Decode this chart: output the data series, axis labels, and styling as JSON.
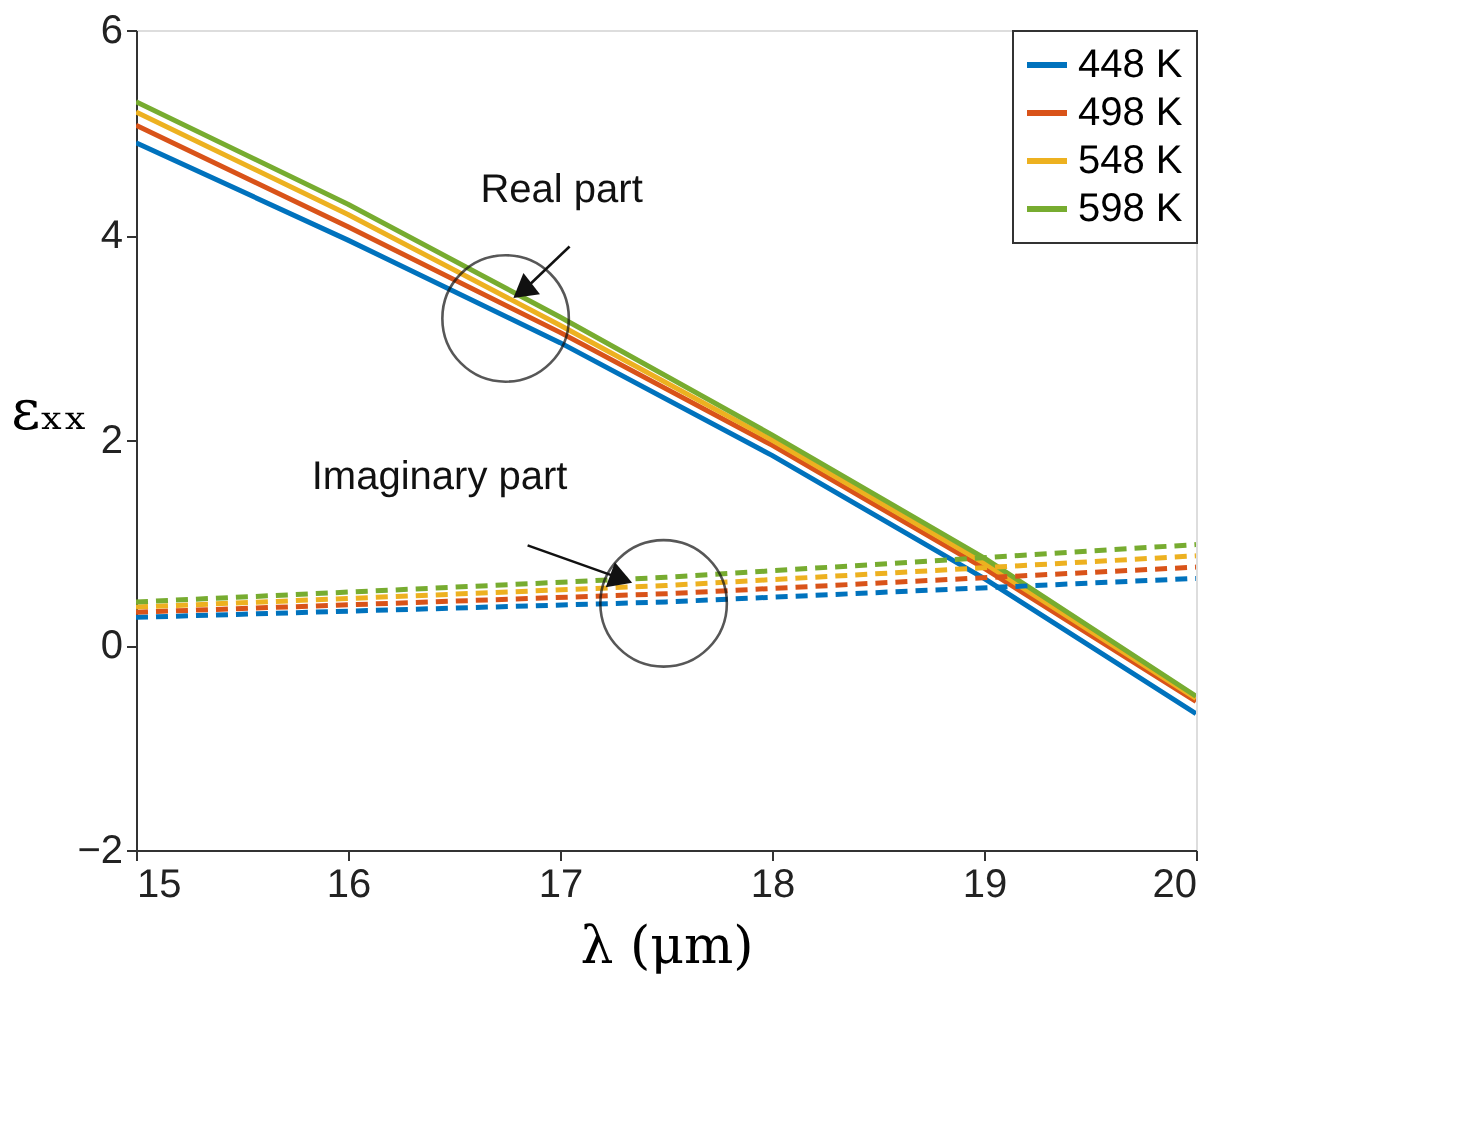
{
  "chart_data": {
    "type": "line",
    "xlabel": "λ (μm)",
    "ylabel": "εₓₓ",
    "x": [
      15,
      16,
      17,
      18,
      19,
      20
    ],
    "xlim": [
      15,
      20
    ],
    "xticks": [
      15,
      16,
      17,
      18,
      19,
      20
    ],
    "ylim": [
      -2,
      6
    ],
    "yticks": [
      -2,
      0,
      2,
      4,
      6
    ],
    "grid": false,
    "legend": "top right",
    "marker": "none",
    "series": [
      {
        "name": "448 K",
        "color": "#0072bd",
        "line_style": "solid",
        "values": [
          4.9,
          3.95,
          2.95,
          1.85,
          0.65,
          -0.67
        ]
      },
      {
        "name": "498 K",
        "color": "#d95319",
        "line_style": "solid",
        "values": [
          5.07,
          4.08,
          3.05,
          1.95,
          0.75,
          -0.55
        ]
      },
      {
        "name": "548 K",
        "color": "#edb120",
        "line_style": "solid",
        "values": [
          5.2,
          4.2,
          3.12,
          2.0,
          0.8,
          -0.52
        ]
      },
      {
        "name": "598 K",
        "color": "#77ac30",
        "line_style": "solid",
        "values": [
          5.3,
          4.3,
          3.2,
          2.05,
          0.85,
          -0.5
        ]
      },
      {
        "color": "#0072bd",
        "line_style": "dashed",
        "x": [
          15,
          17.5,
          20
        ],
        "values": [
          0.27,
          0.42,
          0.65
        ]
      },
      {
        "color": "#d95319",
        "line_style": "dashed",
        "x": [
          15,
          17.5,
          20
        ],
        "values": [
          0.32,
          0.5,
          0.76
        ]
      },
      {
        "color": "#edb120",
        "line_style": "dashed",
        "x": [
          15,
          17.5,
          20
        ],
        "values": [
          0.37,
          0.58,
          0.87
        ]
      },
      {
        "color": "#77ac30",
        "line_style": "dashed",
        "x": [
          15,
          17.5,
          20
        ],
        "values": [
          0.42,
          0.66,
          0.98
        ]
      }
    ],
    "annotations": [
      {
        "text": "Real part",
        "x": 16.8,
        "y": 3.42
      },
      {
        "text": "Imaginary part",
        "x": 17.3,
        "y": 0.64
      }
    ]
  }
}
